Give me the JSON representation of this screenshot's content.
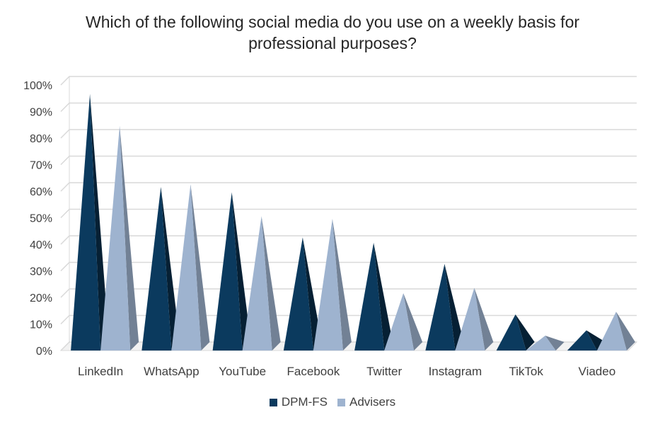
{
  "chart_data": {
    "type": "bar",
    "title": "Which of the following social media do you use on a weekly basis for\nprofessional purposes?",
    "categories": [
      "LinkedIn",
      "WhatsApp",
      "YouTube",
      "Facebook",
      "Twitter",
      "Instagram",
      "TikTok",
      "Viadeo"
    ],
    "series": [
      {
        "name": "DPM-FS",
        "values": [
          95,
          60,
          58,
          41,
          39,
          31,
          12,
          6
        ],
        "color": "#0b3a5e"
      },
      {
        "name": "Advisers",
        "values": [
          83,
          61,
          49,
          48,
          20,
          22,
          4,
          13
        ],
        "color": "#9eb3cf"
      }
    ],
    "yticks": [
      "0%",
      "10%",
      "20%",
      "30%",
      "40%",
      "50%",
      "60%",
      "70%",
      "80%",
      "90%",
      "100%"
    ],
    "ylim": [
      0,
      100
    ],
    "grid": true,
    "legend_position": "bottom",
    "mark_shape": "pyramid"
  }
}
